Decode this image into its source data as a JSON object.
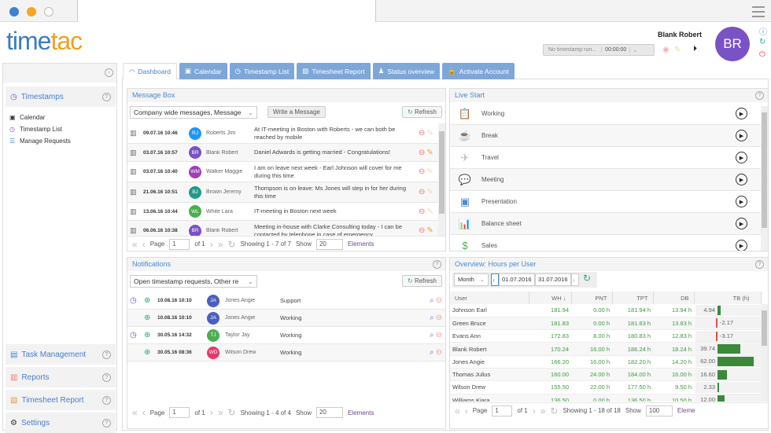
{
  "header": {
    "logo": "timetac",
    "user_name": "Blank Robert",
    "user_initials": "BR",
    "timestamp_status": "No timestamp run...",
    "timer": "00:00:00"
  },
  "colors": {
    "accent": "#4a8ad0",
    "tab": "#7ea7d8",
    "positive": "#3a9a3a",
    "negative": "#e84c4c",
    "bar": "#3a8a3a"
  },
  "sidebar": {
    "sections": [
      {
        "label": "Timestamps",
        "icon": "clock-icon"
      }
    ],
    "items": [
      {
        "label": "Calendar",
        "icon": "calendar-icon"
      },
      {
        "label": "Timestamp List",
        "icon": "clock-icon"
      },
      {
        "label": "Manage Requests",
        "icon": "users-list-icon"
      }
    ],
    "bottom": [
      {
        "label": "Task Management",
        "icon": "clipboard-icon"
      },
      {
        "label": "Reports",
        "icon": "bar-chart-icon"
      },
      {
        "label": "Timesheet Report",
        "icon": "report-icon"
      },
      {
        "label": "Settings",
        "icon": "gear-icon"
      }
    ]
  },
  "tabs": [
    {
      "label": "Dashboard",
      "icon": "dashboard-icon"
    },
    {
      "label": "Calendar",
      "icon": "calendar-icon"
    },
    {
      "label": "Timestamp List",
      "icon": "clock-icon"
    },
    {
      "label": "Timesheet Report",
      "icon": "report-icon"
    },
    {
      "label": "Status overview",
      "icon": "person-icon"
    },
    {
      "label": "Activate Account",
      "icon": "lock-icon"
    }
  ],
  "message_box": {
    "title": "Message Box",
    "filter": "Company wide messages, Message",
    "write_label": "Write a Message",
    "refresh_label": "Refresh",
    "rows": [
      {
        "date": "09.07.16 10:46",
        "initials": "RJ",
        "color": "#2196f3",
        "name": "Roberts Jim",
        "text": "At IT-meeting in Boston with Roberts - we can both be reached by mobile",
        "editable": false
      },
      {
        "date": "03.07.16 10:57",
        "initials": "BR",
        "color": "#7a52c4",
        "name": "Blank Robert",
        "text": "Daniel Adwards is getting married - Congratulations!",
        "editable": true
      },
      {
        "date": "03.07.16 10:40",
        "initials": "WM",
        "color": "#a03cc0",
        "name": "Walker Maggie",
        "text": "I am on leave next week - Earl Johnson will cover for me during this time",
        "editable": false
      },
      {
        "date": "21.06.16 10:51",
        "initials": "BJ",
        "color": "#1f9a8a",
        "name": "Brown Jeremy",
        "text": "Thompson is on leave: Ms Jones will step in for her during this time",
        "editable": false
      },
      {
        "date": "13.06.16 10:44",
        "initials": "WL",
        "color": "#4cae50",
        "name": "White Lara",
        "text": "IT-meeting in Boston next week",
        "editable": false
      },
      {
        "date": "06.06.16 10:38",
        "initials": "BR",
        "color": "#7a52c4",
        "name": "Blank Robert",
        "text": "Meeting in-house with Clarke Consulting today - I can be contacted by telephone in case of emergency",
        "editable": true
      }
    ],
    "pager": {
      "page_label": "Page",
      "page": "1",
      "of": "of 1",
      "showing": "Showing 1 - 7 of 7",
      "show_label": "Show",
      "show": "20",
      "elements": "Elements"
    }
  },
  "notifications": {
    "title": "Notifications",
    "filter": "Open timestamp requests, Other re",
    "refresh_label": "Refresh",
    "rows": [
      {
        "clock": true,
        "date": "10.08.16 10:10",
        "initials": "JA",
        "color": "#4a5fc0",
        "name": "Jones Angie",
        "type": "Support"
      },
      {
        "clock": false,
        "date": "10.08.16 10:10",
        "initials": "JA",
        "color": "#4a5fc0",
        "name": "Jones Angie",
        "type": "Working"
      },
      {
        "clock": true,
        "date": "30.05.16 14:32",
        "initials": "TJ",
        "color": "#4cae50",
        "name": "Taylor Jay",
        "type": "Working"
      },
      {
        "clock": false,
        "date": "30.05.16 08:36",
        "initials": "WD",
        "color": "#e8386a",
        "name": "Wilson Drew",
        "type": "Working"
      }
    ],
    "pager": {
      "page_label": "Page",
      "page": "1",
      "of": "of 1",
      "showing": "Showing 1 - 4 of 4",
      "show_label": "Show",
      "show": "20",
      "elements": "Elements"
    }
  },
  "live_start": {
    "title": "Live Start",
    "items": [
      {
        "label": "Working",
        "icon": "clipboard-icon",
        "glyph": "📋"
      },
      {
        "label": "Break",
        "icon": "coffee-icon",
        "glyph": "☕"
      },
      {
        "label": "Travel",
        "icon": "plane-icon",
        "glyph": "✈"
      },
      {
        "label": "Meeting",
        "icon": "chat-icon",
        "glyph": "💬"
      },
      {
        "label": "Presentation",
        "icon": "presentation-icon",
        "glyph": "▣"
      },
      {
        "label": "Balance sheet",
        "icon": "bar-chart-icon",
        "glyph": "📊"
      },
      {
        "label": "Sales",
        "icon": "money-icon",
        "glyph": "$"
      }
    ]
  },
  "overview": {
    "title": "Overview: Hours per User",
    "period": "Month",
    "from": "01.07.2016",
    "to": "31.07.2016",
    "columns": [
      "User",
      "WH ↓",
      "PNT",
      "TPT",
      "DB",
      "TB (h)"
    ],
    "rows": [
      {
        "user": "Johnson Earl",
        "wh": "181.94",
        "pnt": "0.00 h",
        "tpt": "181.94 h",
        "db": "13.94 h",
        "tb": 4.94
      },
      {
        "user": "Green Bruce",
        "wh": "181.83",
        "pnt": "0.00 h",
        "tpt": "181.83 h",
        "db": "13.83 h",
        "tb": -2.17
      },
      {
        "user": "Evans Ann",
        "wh": "172.83",
        "pnt": "8.00 h",
        "tpt": "180.83 h",
        "db": "12.83 h",
        "tb": -3.17
      },
      {
        "user": "Blank Robert",
        "wh": "170.24",
        "pnt": "16.00 h",
        "tpt": "186.24 h",
        "db": "18.24 h",
        "tb": 39.74
      },
      {
        "user": "Jones Angie",
        "wh": "166.20",
        "pnt": "16.00 h",
        "tpt": "182.20 h",
        "db": "14.20 h",
        "tb": 62.0
      },
      {
        "user": "Thomas Julius",
        "wh": "160.00",
        "pnt": "24.00 h",
        "tpt": "184.00 h",
        "db": "16.00 h",
        "tb": 16.6
      },
      {
        "user": "Wilson Drew",
        "wh": "155.50",
        "pnt": "22.00 h",
        "tpt": "177.50 h",
        "db": "9.50 h",
        "tb": 2.33
      },
      {
        "user": "Williams Kiara",
        "wh": "136.50",
        "pnt": "0.00 h",
        "tpt": "136.50 h",
        "db": "10.50 h",
        "tb": 12.0
      }
    ],
    "pager": {
      "page_label": "Page",
      "page": "1",
      "of": "of 1",
      "showing": "Showing 1 - 18 of 18",
      "show_label": "Show",
      "show": "100",
      "elements": "Eleme"
    }
  }
}
